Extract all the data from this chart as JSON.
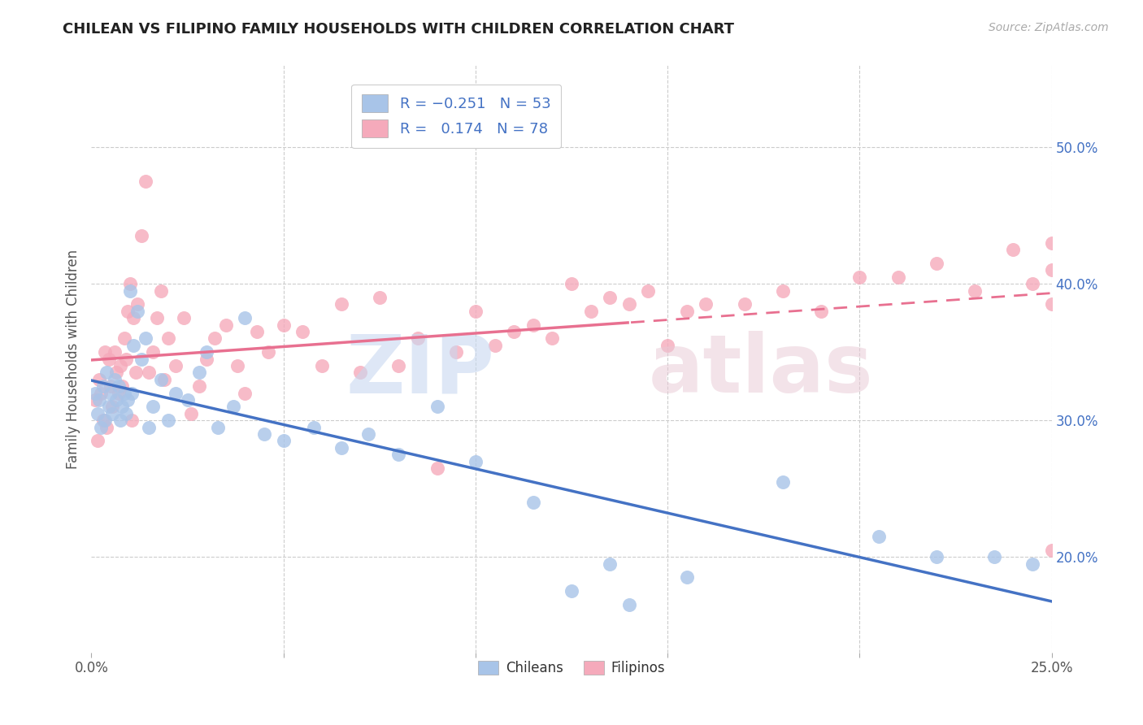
{
  "title": "CHILEAN VS FILIPINO FAMILY HOUSEHOLDS WITH CHILDREN CORRELATION CHART",
  "source": "Source: ZipAtlas.com",
  "ylabel": "Family Households with Children",
  "xlim": [
    0.0,
    25.0
  ],
  "ylim": [
    13.0,
    56.0
  ],
  "y_ticks": [
    20.0,
    30.0,
    40.0,
    50.0
  ],
  "x_ticks": [
    0.0,
    5.0,
    10.0,
    15.0,
    20.0,
    25.0
  ],
  "x_tick_labels": [
    "0.0%",
    "",
    "",
    "",
    "",
    "25.0%"
  ],
  "chilean_R": -0.251,
  "chilean_N": 53,
  "filipino_R": 0.174,
  "filipino_N": 78,
  "chilean_color": "#a8c4e8",
  "filipino_color": "#f5aabb",
  "chilean_line_color": "#4472C4",
  "filipino_line_color": "#e87090",
  "legend_label_chileans": "Chileans",
  "legend_label_filipinos": "Filipinos",
  "chilean_x": [
    0.1,
    0.15,
    0.2,
    0.25,
    0.3,
    0.35,
    0.4,
    0.45,
    0.5,
    0.55,
    0.6,
    0.65,
    0.7,
    0.75,
    0.8,
    0.85,
    0.9,
    0.95,
    1.0,
    1.05,
    1.1,
    1.2,
    1.3,
    1.4,
    1.5,
    1.6,
    1.8,
    2.0,
    2.2,
    2.5,
    2.8,
    3.0,
    3.3,
    3.7,
    4.0,
    4.5,
    5.0,
    5.8,
    6.5,
    7.2,
    8.0,
    9.0,
    10.0,
    11.5,
    12.5,
    13.5,
    14.0,
    15.5,
    18.0,
    20.5,
    22.0,
    23.5,
    24.5
  ],
  "chilean_y": [
    32.0,
    30.5,
    31.5,
    29.5,
    32.5,
    30.0,
    33.5,
    31.0,
    32.0,
    30.5,
    33.0,
    31.5,
    32.5,
    30.0,
    31.0,
    32.0,
    30.5,
    31.5,
    39.5,
    32.0,
    35.5,
    38.0,
    34.5,
    36.0,
    29.5,
    31.0,
    33.0,
    30.0,
    32.0,
    31.5,
    33.5,
    35.0,
    29.5,
    31.0,
    37.5,
    29.0,
    28.5,
    29.5,
    28.0,
    29.0,
    27.5,
    31.0,
    27.0,
    24.0,
    17.5,
    19.5,
    16.5,
    18.5,
    25.5,
    21.5,
    20.0,
    20.0,
    19.5
  ],
  "filipino_x": [
    0.1,
    0.15,
    0.2,
    0.25,
    0.3,
    0.35,
    0.4,
    0.45,
    0.5,
    0.55,
    0.6,
    0.65,
    0.7,
    0.75,
    0.8,
    0.85,
    0.9,
    0.95,
    1.0,
    1.05,
    1.1,
    1.15,
    1.2,
    1.3,
    1.4,
    1.5,
    1.6,
    1.7,
    1.8,
    1.9,
    2.0,
    2.2,
    2.4,
    2.6,
    2.8,
    3.0,
    3.2,
    3.5,
    3.8,
    4.0,
    4.3,
    4.6,
    5.0,
    5.5,
    6.0,
    6.5,
    7.0,
    7.5,
    8.0,
    8.5,
    9.0,
    9.5,
    10.0,
    10.5,
    11.0,
    11.5,
    12.0,
    12.5,
    13.0,
    13.5,
    14.0,
    14.5,
    15.0,
    15.5,
    16.0,
    17.0,
    18.0,
    19.0,
    20.0,
    21.0,
    22.0,
    23.0,
    24.0,
    24.5,
    25.0,
    25.0,
    25.0,
    25.0
  ],
  "filipino_y": [
    31.5,
    28.5,
    33.0,
    32.0,
    30.0,
    35.0,
    29.5,
    34.5,
    32.5,
    31.0,
    35.0,
    33.5,
    32.0,
    34.0,
    32.5,
    36.0,
    34.5,
    38.0,
    40.0,
    30.0,
    37.5,
    33.5,
    38.5,
    43.5,
    47.5,
    33.5,
    35.0,
    37.5,
    39.5,
    33.0,
    36.0,
    34.0,
    37.5,
    30.5,
    32.5,
    34.5,
    36.0,
    37.0,
    34.0,
    32.0,
    36.5,
    35.0,
    37.0,
    36.5,
    34.0,
    38.5,
    33.5,
    39.0,
    34.0,
    36.0,
    26.5,
    35.0,
    38.0,
    35.5,
    36.5,
    37.0,
    36.0,
    40.0,
    38.0,
    39.0,
    38.5,
    39.5,
    35.5,
    38.0,
    38.5,
    38.5,
    39.5,
    38.0,
    40.5,
    40.5,
    41.5,
    39.5,
    42.5,
    40.0,
    41.0,
    38.5,
    20.5,
    43.0
  ]
}
